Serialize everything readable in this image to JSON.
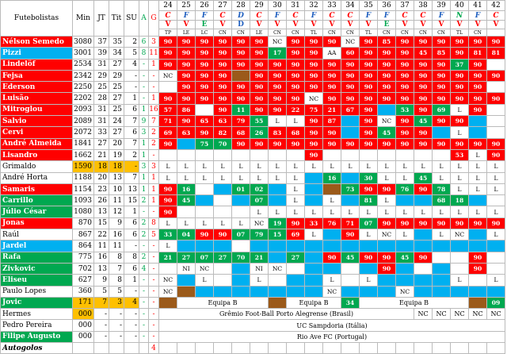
{
  "colors": {
    "starter": "#ff0000",
    "sub_in": "#00a850",
    "bench": "#00b0f0",
    "absent": "#9b5a1a",
    "orange": "#ffc000"
  },
  "headers": {
    "player": "Futebolistas",
    "min": "Min",
    "jt": "JT",
    "tit": "Tit",
    "su": "SU",
    "a": "A",
    "g": "G"
  },
  "rounds": [
    "24",
    "25",
    "26",
    "27",
    "28",
    "29",
    "30",
    "31",
    "32",
    "33",
    "34",
    "35",
    "36",
    "37",
    "38",
    "39",
    "40",
    "41",
    "42"
  ],
  "homeaway": [
    "C",
    "F",
    "F",
    "C",
    "D",
    "C",
    "F",
    "C",
    "F",
    "C",
    "C",
    "F",
    "F",
    "C",
    "C",
    "F",
    "N",
    "F",
    "C"
  ],
  "results": [
    "V",
    "V",
    "E",
    "V",
    "D",
    "V",
    "V",
    "V",
    "V",
    "V",
    "V",
    "V",
    "E",
    "V",
    "V",
    "V",
    "V",
    "V",
    "V"
  ],
  "comps": [
    "TP",
    "LE",
    "LC",
    "CN",
    "CN",
    "LE",
    "CN",
    "CN",
    "TL",
    "CN",
    "CN",
    "TL",
    "CN",
    "CN",
    "CN",
    "CN",
    "TL",
    "CN",
    ""
  ],
  "players": [
    {
      "name": "Nélson Semedo",
      "bg": "r",
      "min": "3080",
      "jt": "37",
      "tit": "35",
      "su": "2",
      "a": "6",
      "g": "3",
      "cells": [
        "r:90",
        "r:90",
        "r:90",
        "r:90",
        "r:90",
        "r:90",
        "w:NC",
        "r:90",
        "r:90",
        "r:90",
        "w:NC",
        "r:90",
        "r:85",
        "r:90",
        "r:90",
        "r:90",
        "r:90",
        "r:90",
        "r:90"
      ]
    },
    {
      "name": "Pizzi",
      "bg": "bl",
      "min": "3001",
      "jt": "39",
      "tit": "34",
      "su": "5",
      "a": "8",
      "g": "11",
      "cells": [
        "r:90",
        "r:90",
        "r:90",
        "r:90",
        "r:90",
        "r:90",
        "gr:17",
        "r:90",
        "r:90",
        "w:AA",
        "r:60",
        "r:90",
        "r:90",
        "r:90",
        "r:45",
        "r:85",
        "r:90",
        "r:81",
        "r:81"
      ]
    },
    {
      "name": "Lindelöf",
      "bg": "r",
      "min": "2534",
      "cells": [
        "r:90",
        "r:90",
        "r:90",
        "r:90",
        "r:90",
        "r:90",
        "r:90",
        "r:90",
        "r:90",
        "r:90",
        "r:90",
        "r:90",
        "r:90",
        "r:90",
        "r:90",
        "r:90",
        "gr:37",
        "r:90",
        ""
      ],
      "jt": "31",
      "tit": "27",
      "su": "4",
      "a": "-",
      "g": "1"
    },
    {
      "name": "Fejsa",
      "bg": "r",
      "min": "2342",
      "jt": "29",
      "tit": "29",
      "su": "-",
      "a": "-",
      "g": "-",
      "cells": [
        "w:NC",
        "r:90",
        "r:90",
        "r:90",
        "br:",
        "r:90",
        "r:90",
        "r:90",
        "r:90",
        "r:90",
        "r:90",
        "r:90",
        "r:90",
        "r:90",
        "r:90",
        "r:90",
        "r:90",
        "r:90",
        "r:90"
      ]
    },
    {
      "name": "Ederson",
      "bg": "r",
      "min": "2250",
      "jt": "25",
      "tit": "25",
      "su": "-",
      "a": "-",
      "g": "-",
      "cells": [
        "w:",
        "r:90",
        "r:90",
        "r:90",
        "r:90",
        "r:90",
        "r:90",
        "r:90",
        "r:90",
        "r:90",
        "r:90",
        "r:90",
        "r:90",
        "r:90",
        "r:90",
        "r:90",
        "r:90",
        "r:90",
        ""
      ]
    },
    {
      "name": "Luisão",
      "bg": "r",
      "min": "2202",
      "jt": "28",
      "tit": "27",
      "su": "1",
      "a": "-",
      "g": "1",
      "cells": [
        "r:90",
        "r:90",
        "r:90",
        "r:90",
        "r:90",
        "r:90",
        "r:90",
        "r:90",
        "w:NC",
        "r:90",
        "r:90",
        "r:90",
        "r:90",
        "r:90",
        "r:90",
        "r:90",
        "r:90",
        "r:90",
        "r:90"
      ]
    },
    {
      "name": "Mitroglou",
      "bg": "r",
      "min": "2093",
      "jt": "31",
      "tit": "25",
      "su": "6",
      "a": "1",
      "g": "16",
      "cells": [
        "r:57",
        "r:86",
        "w:",
        "r:90",
        "gr:11",
        "r:90",
        "r:90",
        "r:22",
        "r:75",
        "r:21",
        "r:67",
        "r:90",
        "bl:",
        "gr:53",
        "r:90",
        "gr:69",
        "w:L",
        "r:90",
        ""
      ]
    },
    {
      "name": "Salvio",
      "bg": "r",
      "min": "2089",
      "jt": "31",
      "tit": "24",
      "su": "7",
      "a": "9",
      "g": "7",
      "cells": [
        "r:71",
        "r:90",
        "r:65",
        "r:63",
        "r:79",
        "gr:55",
        "w:L",
        "w:L",
        "r:90",
        "r:87",
        "bl:",
        "r:90",
        "w:NC",
        "r:90",
        "gr:45",
        "r:90",
        "r:90",
        "bl:",
        ""
      ]
    },
    {
      "name": "Cervi",
      "bg": "r",
      "min": "2072",
      "cells": [
        "r:69",
        "r:63",
        "r:90",
        "r:82",
        "r:68",
        "gr:26",
        "r:83",
        "r:68",
        "r:90",
        "r:90",
        "bl:",
        "r:90",
        "gr:45",
        "r:90",
        "r:90",
        "bl:",
        "w:L",
        "bl:",
        ""
      ],
      "jt": "33",
      "tit": "27",
      "su": "6",
      "a": "3",
      "g": "2"
    },
    {
      "name": "André Almeida",
      "bg": "r",
      "min": "1841",
      "jt": "27",
      "tit": "20",
      "su": "7",
      "a": "1",
      "g": "2",
      "cells": [
        "r:90",
        "bl:",
        "gr:75",
        "gr:70",
        "r:90",
        "r:90",
        "r:90",
        "r:90",
        "r:90",
        "r:90",
        "r:90",
        "r:90",
        "r:90",
        "r:90",
        "r:90",
        "r:90",
        "r:90",
        "r:90",
        "r:90"
      ]
    },
    {
      "name": "Lisandro",
      "bg": "r",
      "min": "1662",
      "jt": "21",
      "tit": "19",
      "su": "2",
      "a": "1",
      "g": "-",
      "cells": [
        "w:",
        "w:",
        "w:",
        "w:",
        "w:",
        "w:",
        "w:",
        "w:",
        "r:90",
        "w:",
        "w:",
        "w:",
        "w:",
        "w:",
        "w:",
        "w:",
        "r:53",
        "w:L",
        "r:90"
      ]
    },
    {
      "name": "Grimaldo",
      "bg": "w",
      "min": "1590",
      "minbg": "or",
      "jt": "18",
      "tit": "18",
      "su": "-",
      "a": "3",
      "g": "3",
      "cells": [
        "w:L",
        "w:L",
        "w:L",
        "w:L",
        "w:L",
        "w:L",
        "w:L",
        "w:L",
        "w:L",
        "w:L",
        "w:L",
        "w:L",
        "w:L",
        "w:L",
        "w:L",
        "w:L",
        "w:L",
        "w:L",
        "w:L"
      ]
    },
    {
      "name": "André Horta",
      "bg": "w",
      "min": "1188",
      "jt": "20",
      "tit": "13",
      "su": "7",
      "a": "1",
      "g": "1",
      "cells": [
        "w:L",
        "w:L",
        "w:L",
        "w:L",
        "w:L",
        "w:L",
        "w:L",
        "w:L",
        "bl:",
        "gr:16",
        "bl:",
        "gr:30",
        "w:L",
        "w:L",
        "gr:45",
        "w:L",
        "w:L",
        "w:L",
        "w:L"
      ]
    },
    {
      "name": "Samaris",
      "bg": "r",
      "min": "1154",
      "jt": "23",
      "tit": "10",
      "su": "13",
      "a": "1",
      "g": "1",
      "cells": [
        "r:90",
        "gr:16",
        "w:",
        "bl:",
        "gr:01",
        "gr:02",
        "bl:",
        "w:L",
        "bl:",
        "br:",
        "gr:73",
        "r:90",
        "r:90",
        "gr:76",
        "r:90",
        "gr:78",
        "w:L",
        "w:L",
        "w:L"
      ]
    },
    {
      "name": "Carrillo",
      "bg": "gr",
      "min": "1093",
      "jt": "26",
      "tit": "11",
      "su": "15",
      "a": "2",
      "g": "1",
      "cells": [
        "r:90",
        "gr:45",
        "bl:",
        "w:",
        "bl:",
        "gr:07",
        "bl:",
        "w:L",
        "bl:",
        "w:L",
        "bl:",
        "gr:81",
        "w:L",
        "bl:",
        "bl:",
        "gr:68",
        "gr:18",
        "bl:",
        ""
      ]
    },
    {
      "name": "Júlio César",
      "bg": "gr",
      "min": "1080",
      "jt": "13",
      "tit": "12",
      "su": "1",
      "a": "-",
      "g": "-",
      "cells": [
        "r:90",
        "w:",
        "w:",
        "w:",
        "w:",
        "w:L",
        "w:L",
        "w:L",
        "w:L",
        "w:L",
        "w:L",
        "w:L",
        "w:L",
        "w:L",
        "w:L",
        "w:L",
        "w:L",
        "w:L",
        "w:L"
      ]
    },
    {
      "name": "Jonas",
      "bg": "r",
      "min": "870",
      "jt": "15",
      "tit": "9",
      "su": "6",
      "a": "2",
      "g": "8",
      "cells": [
        "w:L",
        "w:L",
        "w:L",
        "w:L",
        "w:L",
        "w:NC",
        "gr:19",
        "r:90",
        "r:33",
        "r:76",
        "r:71",
        "gr:07",
        "r:90",
        "r:90",
        "r:90",
        "r:90",
        "r:90",
        "r:90",
        "r:90"
      ]
    },
    {
      "name": "Raúl",
      "bg": "w",
      "min": "867",
      "jt": "22",
      "tit": "16",
      "su": "6",
      "a": "2",
      "g": "5",
      "cells": [
        "gr:33",
        "gr:04",
        "r:90",
        "r:90",
        "gr:07",
        "gr:79",
        "gr:15",
        "r:69",
        "w:L",
        "bl:",
        "r:90",
        "w:L",
        "w:NC",
        "w:L",
        "bl:",
        "w:L",
        "w:NC",
        "bl:",
        "w:L"
      ]
    },
    {
      "name": "Jardel",
      "bg": "bl",
      "min": "864",
      "jt": "11",
      "tit": "11",
      "su": "-",
      "a": "-",
      "g": "-",
      "cells": [
        "w:L",
        "bl:",
        "bl:",
        "bl:",
        "w:",
        "bl:",
        "bl:",
        "bl:",
        "bl:",
        "bl:",
        "bl:",
        "bl:",
        "bl:",
        "bl:",
        "bl:",
        "bl:",
        "bl:",
        "bl:",
        "bl:"
      ]
    },
    {
      "name": "Rafa",
      "bg": "gr",
      "min": "775",
      "jt": "16",
      "tit": "8",
      "su": "8",
      "a": "2",
      "g": "-",
      "cells": [
        "gr:21",
        "gr:27",
        "gr:07",
        "gr:27",
        "gr:70",
        "gr:21",
        "bl:",
        "gr:27",
        "bl:",
        "r:90",
        "gr:45",
        "r:90",
        "r:90",
        "gr:45",
        "r:90",
        "w:",
        "w:",
        "r:90",
        ""
      ]
    },
    {
      "name": "Zivkovic",
      "bg": "gr",
      "min": "702",
      "jt": "13",
      "tit": "7",
      "su": "6",
      "a": "4",
      "g": "-",
      "cells": [
        "w:",
        "w:NI",
        "w:NC",
        "w:",
        "bl:",
        "w:NI",
        "w:NC",
        "w:",
        "bl:",
        "bl:",
        "w:",
        "bl:",
        "r:90",
        "bl:",
        "w:",
        "bl:",
        "w:",
        "r:90",
        "w:"
      ]
    },
    {
      "name": "Eliseu",
      "bg": "gr",
      "min": "627",
      "jt": "9",
      "tit": "8",
      "su": "1",
      "a": "-",
      "g": "-",
      "cells": [
        "w:NC",
        "bl:",
        "w:L",
        "w:",
        "bl:",
        "w:L",
        "w:",
        "bl:",
        "bl:",
        "w:L",
        "w:",
        "w:L",
        "bl:",
        "bl:",
        "bl:",
        "bl:",
        "w:L",
        "w:",
        "w:L"
      ]
    },
    {
      "name": "Paulo Lopes",
      "bg": "w",
      "min": "360",
      "jt": "5",
      "tit": "5",
      "su": "-",
      "a": "-",
      "g": "-",
      "cells": [
        "w:NC",
        "br:",
        "bl:",
        "bl:",
        "bl:",
        "bl:",
        "bl:",
        "bl:",
        "bl:",
        "w:NC",
        "bl:",
        "bl:",
        "bl:",
        "w:NC",
        "bl:",
        "bl:",
        "bl:",
        "bl:",
        "bl:"
      ]
    },
    {
      "name": "Jovic",
      "bg": "gr",
      "min": "171",
      "minbg": "or",
      "jt": "7",
      "tit": "3",
      "su": "4",
      "a": "-",
      "g": "-",
      "span": "Equipa B",
      "spanCells": [
        "br:",
        "w:",
        "w:",
        "w:",
        "w:",
        "w:",
        "w:",
        "w:",
        "w:",
        "w:",
        "gr:34",
        "w:",
        "w:",
        "w:",
        "w:",
        "w:",
        "w:",
        "gr:09",
        "w:"
      ]
    },
    {
      "name": "Hermes",
      "bg": "w",
      "min": "000",
      "minbg": "or",
      "jt": "-",
      "tit": "-",
      "su": "-",
      "a": "-",
      "g": "-",
      "text1": "Grêmio Foot-Ball Porto Alegrense (Brasil)"
    },
    {
      "name": "Pedro Pereira",
      "bg": "w",
      "min": "000",
      "jt": "-",
      "tit": "-",
      "su": "-",
      "a": "-",
      "g": "-",
      "text2": "UC Sampdoria (Itália)"
    },
    {
      "name": "Filipe Augusto",
      "bg": "gr",
      "min": "000",
      "jt": "-",
      "tit": "-",
      "su": "-",
      "a": "-",
      "g": "-",
      "text3": "Rio Ave FC (Portugal)"
    },
    {
      "name": "Autogolos",
      "bg": "w",
      "min": "",
      "jt": "",
      "tit": "",
      "su": "",
      "a": "",
      "g": "4",
      "italic": true
    }
  ],
  "labels": {
    "equipa_b_1": "Equipa B",
    "equipa_b_2": "Equipa B",
    "equipa_b_3": "Equipa B",
    "nc": "NC"
  }
}
